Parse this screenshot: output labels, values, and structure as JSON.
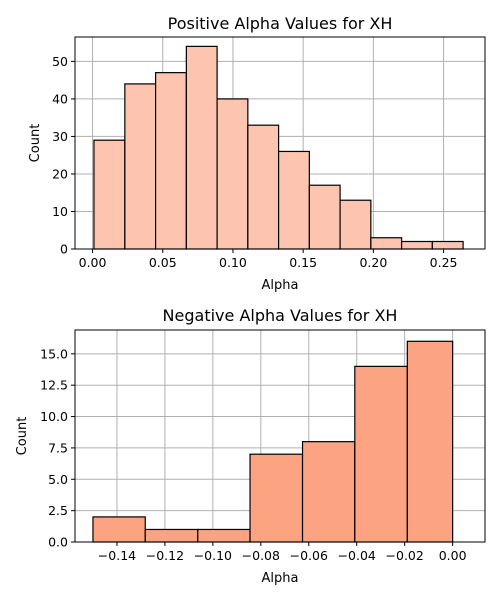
{
  "chart_data": [
    {
      "type": "bar",
      "title": "Positive Alpha Values for XH",
      "xlabel": "Alpha",
      "ylabel": "Count",
      "color": "#fdc5b0",
      "grid": true,
      "xlim": [
        -0.0125,
        0.2795
      ],
      "ylim": [
        0,
        56.5
      ],
      "xticks": [
        0.0,
        0.05,
        0.1,
        0.15,
        0.2,
        0.25
      ],
      "xtick_labels": [
        "0.00",
        "0.05",
        "0.10",
        "0.15",
        "0.20",
        "0.25"
      ],
      "yticks": [
        0,
        10,
        20,
        30,
        40,
        50
      ],
      "ytick_labels": [
        "0",
        "10",
        "20",
        "30",
        "40",
        "50"
      ],
      "bin_edges": [
        0.001,
        0.023,
        0.0449,
        0.0668,
        0.0887,
        0.1106,
        0.1325,
        0.1544,
        0.1763,
        0.1982,
        0.2201,
        0.242,
        0.2639
      ],
      "counts": [
        29,
        44,
        47,
        54,
        40,
        33,
        26,
        17,
        13,
        3,
        2,
        2
      ]
    },
    {
      "type": "bar",
      "title": "Negative Alpha Values for XH",
      "xlabel": "Alpha",
      "ylabel": "Count",
      "color": "#fca482",
      "grid": true,
      "xlim": [
        -0.1575,
        0.0135
      ],
      "ylim": [
        0,
        16.9
      ],
      "xticks": [
        -0.14,
        -0.12,
        -0.1,
        -0.08,
        -0.06,
        -0.04,
        -0.02,
        0.0
      ],
      "xtick_labels": [
        "−0.14",
        "−0.12",
        "−0.10",
        "−0.08",
        "−0.06",
        "−0.04",
        "−0.02",
        "0.00"
      ],
      "yticks": [
        0,
        2.5,
        5.0,
        7.5,
        10.0,
        12.5,
        15.0
      ],
      "ytick_labels": [
        "0.0",
        "2.5",
        "5.0",
        "7.5",
        "10.0",
        "12.5",
        "15.0"
      ],
      "bin_edges": [
        -0.15,
        -0.1282,
        -0.1063,
        -0.0845,
        -0.0626,
        -0.0408,
        -0.0189,
        0.0
      ],
      "counts": [
        2,
        1,
        1,
        7,
        8,
        14,
        16
      ]
    }
  ]
}
